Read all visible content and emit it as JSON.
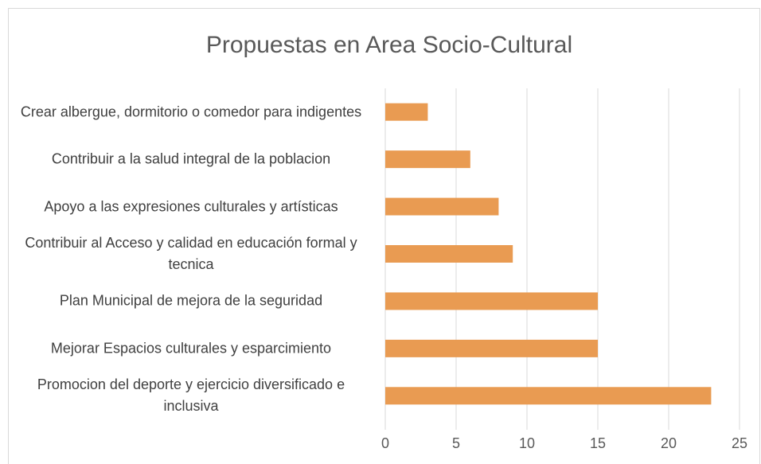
{
  "chart_data": {
    "type": "bar",
    "orientation": "horizontal",
    "title": "Propuestas en Area Socio-Cultural",
    "categories": [
      "Crear albergue, dormitorio o comedor para indigentes",
      "Contribuir a la salud integral de la poblacion",
      "Apoyo a las expresiones culturales y artísticas",
      "Contribuir al Acceso y calidad en educación formal y tecnica",
      "Plan Municipal de mejora de la seguridad",
      "Mejorar Espacios culturales y esparcimiento",
      "Promocion del deporte y ejercicio diversificado e inclusiva"
    ],
    "values": [
      3,
      6,
      8,
      9,
      15,
      15,
      23
    ],
    "color": "#e99b52",
    "xlim": [
      0,
      25
    ],
    "xticks": [
      0,
      5,
      10,
      15,
      20,
      25
    ],
    "grid": true
  }
}
